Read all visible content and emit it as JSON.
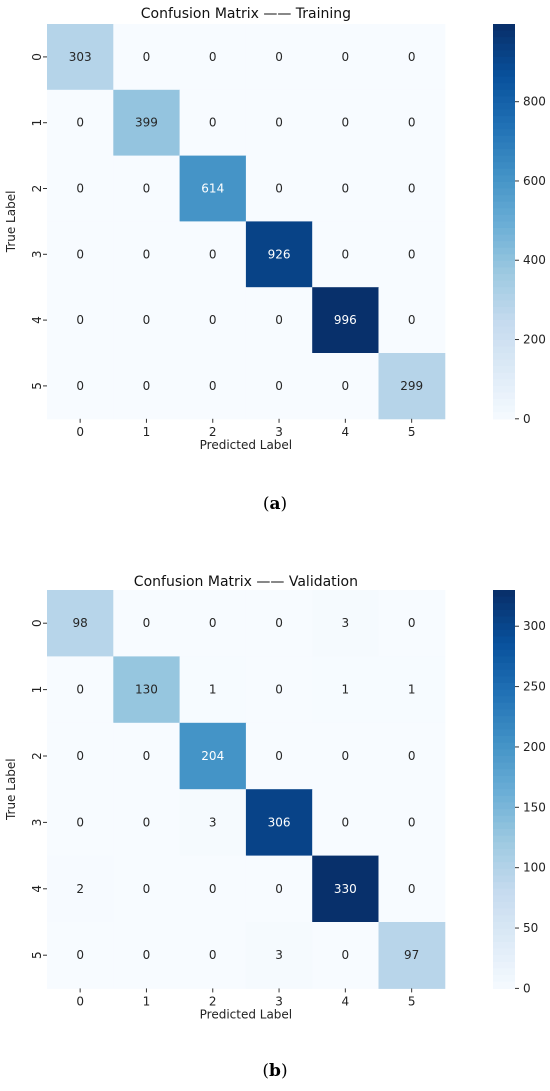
{
  "chart_data": [
    {
      "type": "heatmap",
      "title": "Confusion Matrix —— Training",
      "xlabel": "Predicted Label",
      "ylabel": "True Label",
      "x_ticks": [
        "0",
        "1",
        "2",
        "3",
        "4",
        "5"
      ],
      "y_ticks": [
        "0",
        "1",
        "2",
        "3",
        "4",
        "5"
      ],
      "matrix": [
        [
          303,
          0,
          0,
          0,
          0,
          0
        ],
        [
          0,
          399,
          0,
          0,
          0,
          0
        ],
        [
          0,
          0,
          614,
          0,
          0,
          0
        ],
        [
          0,
          0,
          0,
          926,
          0,
          0
        ],
        [
          0,
          0,
          0,
          0,
          996,
          0
        ],
        [
          0,
          0,
          0,
          0,
          0,
          299
        ]
      ],
      "colorbar": {
        "min": 0,
        "max": 996,
        "ticks": [
          0,
          200,
          400,
          600,
          800
        ]
      },
      "colormap": "Blues"
    },
    {
      "type": "heatmap",
      "title": "Confusion Matrix —— Validation",
      "xlabel": "Predicted Label",
      "ylabel": "True Label",
      "x_ticks": [
        "0",
        "1",
        "2",
        "3",
        "4",
        "5"
      ],
      "y_ticks": [
        "0",
        "1",
        "2",
        "3",
        "4",
        "5"
      ],
      "matrix": [
        [
          98,
          0,
          0,
          0,
          3,
          0
        ],
        [
          0,
          130,
          1,
          0,
          1,
          1
        ],
        [
          0,
          0,
          204,
          0,
          0,
          0
        ],
        [
          0,
          0,
          3,
          306,
          0,
          0
        ],
        [
          2,
          0,
          0,
          0,
          330,
          0
        ],
        [
          0,
          0,
          0,
          3,
          0,
          97
        ]
      ],
      "colorbar": {
        "min": 0,
        "max": 330,
        "ticks": [
          0,
          50,
          100,
          150,
          200,
          250,
          300
        ]
      },
      "colormap": "Blues"
    }
  ],
  "captions": [
    {
      "label": "a"
    },
    {
      "label": "b"
    }
  ]
}
